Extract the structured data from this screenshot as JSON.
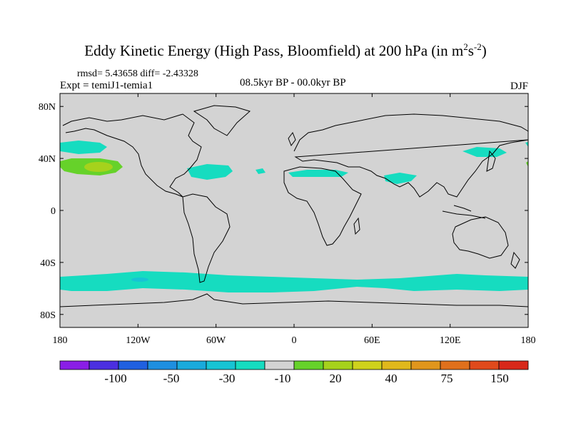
{
  "title": {
    "main": "Eddy Kinetic Energy (High Pass, Bloomfield) at 200 hPa (in m",
    "sup1": "2",
    "mid": "s",
    "sup2": "-2",
    "end": ")"
  },
  "subtitle": {
    "stats": "rmsd= 5.43658 diff= -2.43328",
    "experiment": "Expt = temiJ1-temia1",
    "period": "08.5kyr BP - 00.0kyr BP",
    "season": "DJF"
  },
  "map": {
    "lat_range": [
      -90,
      90
    ],
    "lon_range": [
      -180,
      180
    ],
    "background_color": "#d3d3d3",
    "lat_ticks": [
      "80N",
      "40N",
      "0",
      "40S",
      "80S"
    ],
    "lon_ticks": [
      "180",
      "120W",
      "60W",
      "0",
      "60E",
      "120E",
      "180"
    ]
  },
  "colorbar": {
    "colors": [
      "#8a1ee6",
      "#4b2fe0",
      "#2060e0",
      "#1e8fe0",
      "#19aadc",
      "#17c4d4",
      "#16dcc0",
      "#d3d3d3",
      "#66d22a",
      "#a6d21c",
      "#cfd21c",
      "#e0b81c",
      "#e0961c",
      "#e0701c",
      "#e04a1c",
      "#d8281a"
    ],
    "labels": [
      "-100",
      "-50",
      "-30",
      "-10",
      "20",
      "40",
      "75",
      "150"
    ]
  }
}
